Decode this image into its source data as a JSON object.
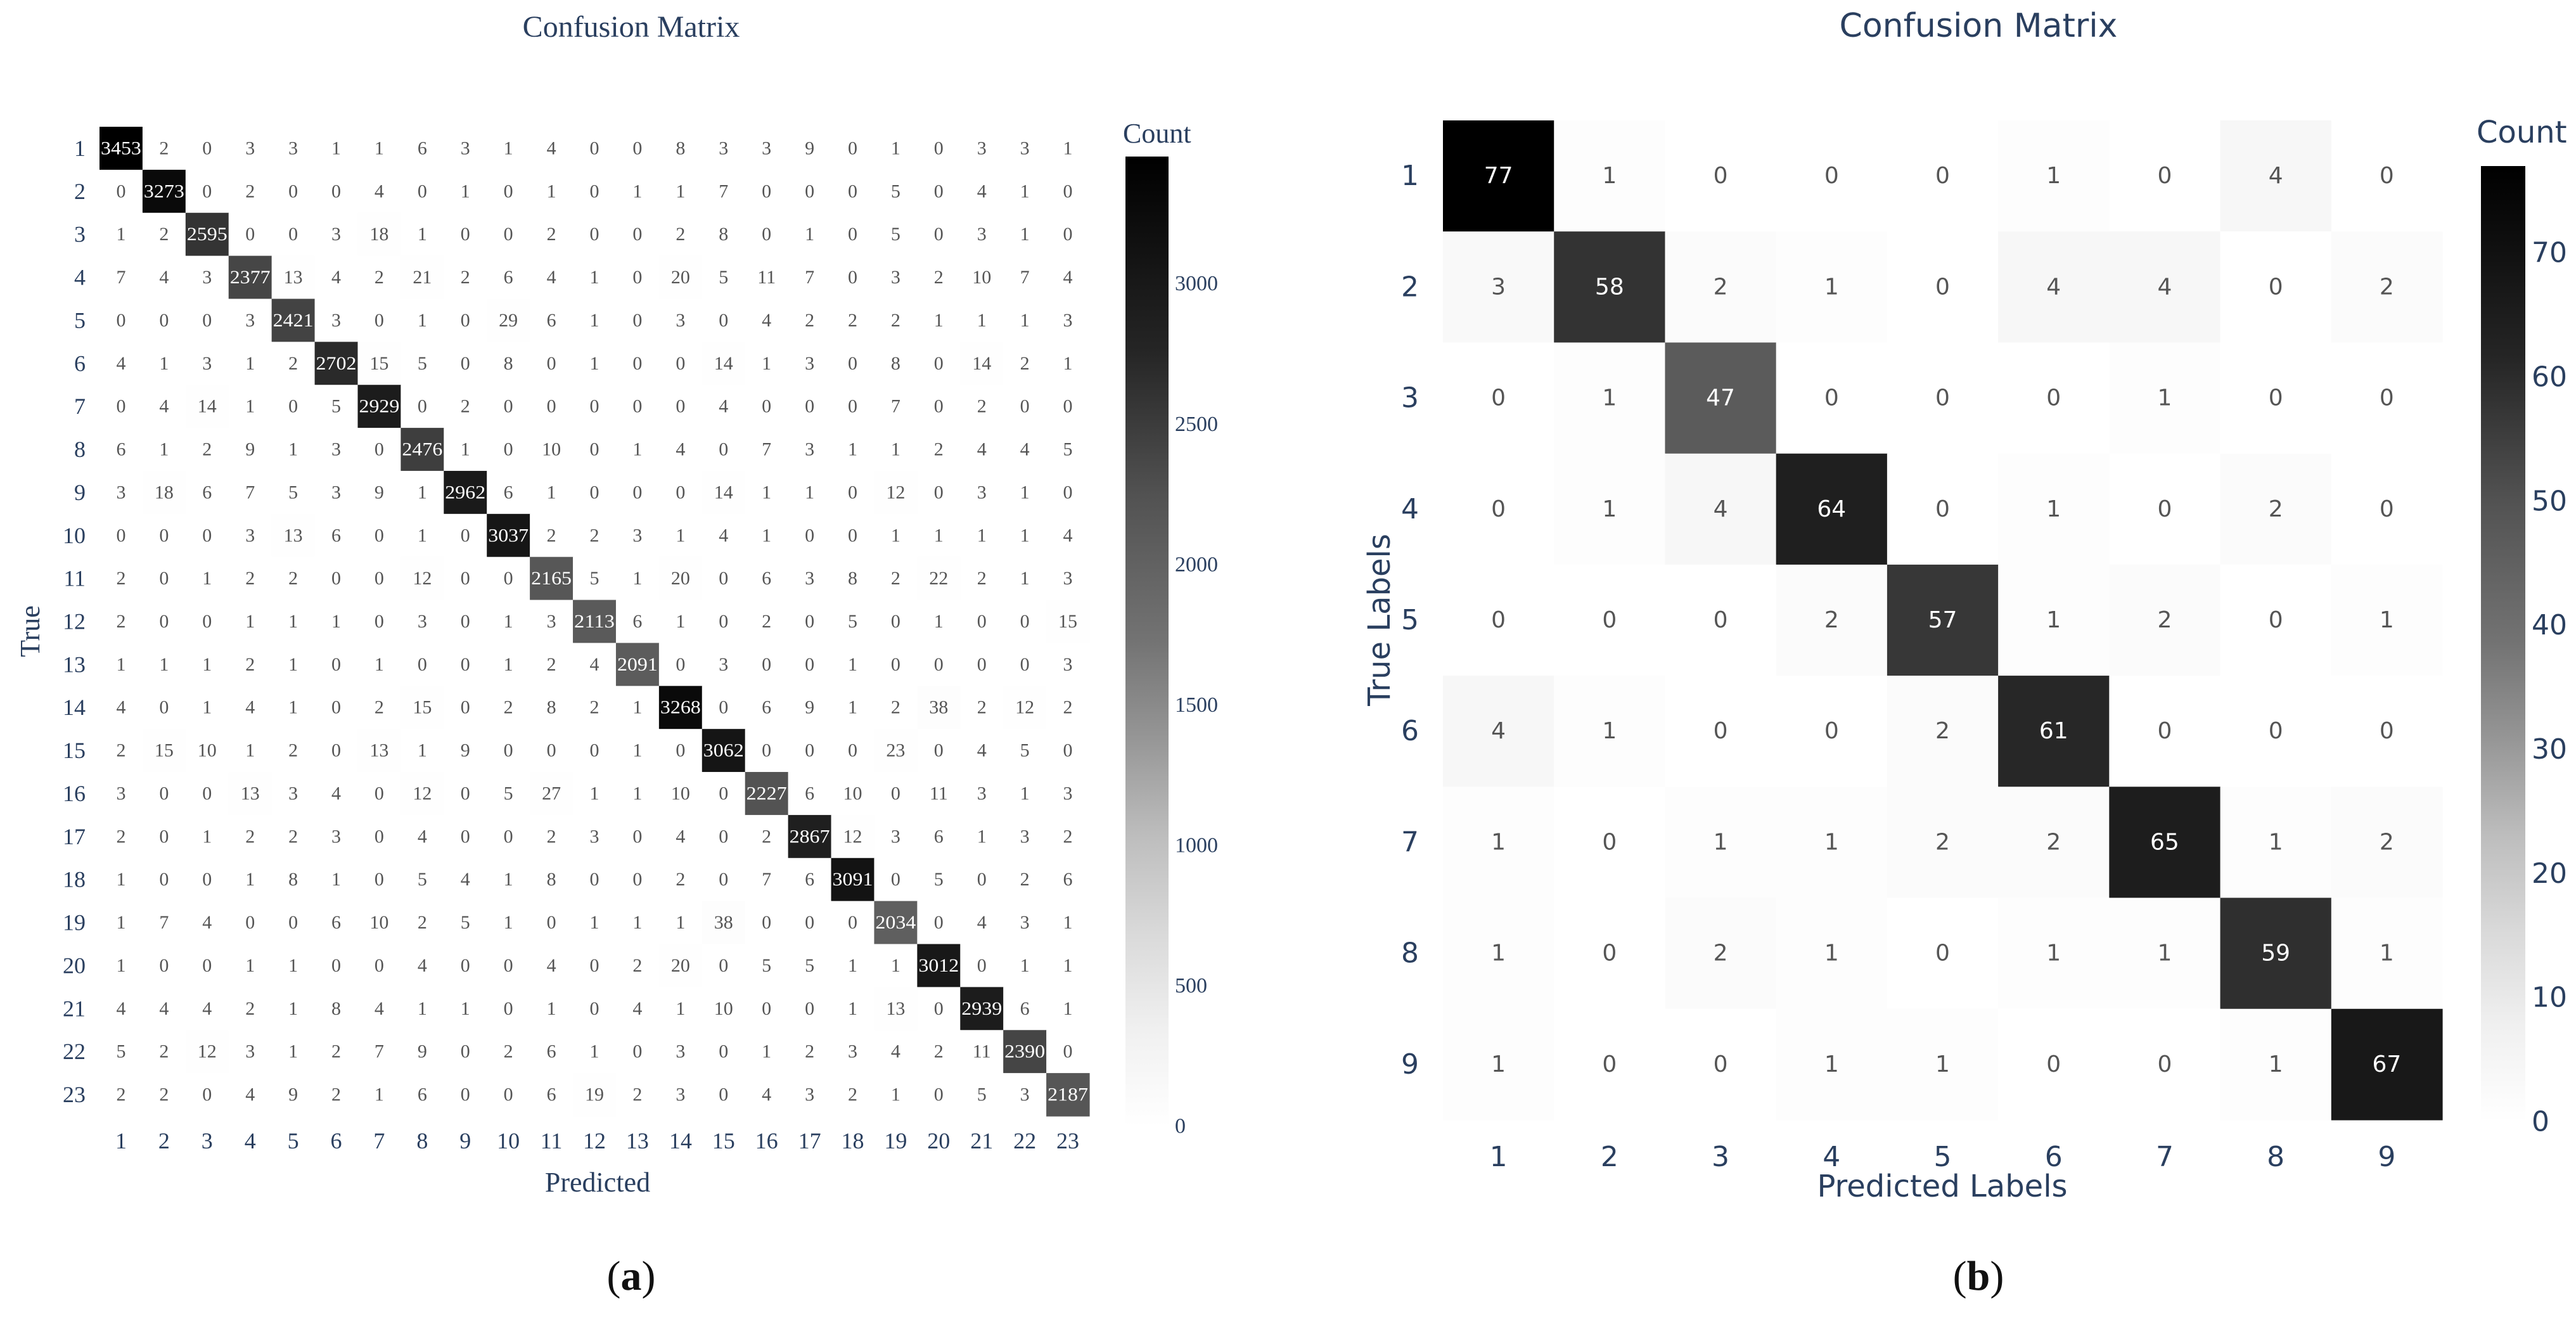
{
  "panels": [
    {
      "id": "a",
      "title": "Confusion Matrix",
      "xlabel": "Predicted",
      "ylabel": "True",
      "colorbar_title": "Count",
      "colorbar_ticks": [
        0,
        500,
        1000,
        1500,
        2000,
        2500,
        3000
      ],
      "caption_letter": "a"
    },
    {
      "id": "b",
      "title": "Confusion Matrix",
      "xlabel": "Predicted Labels",
      "ylabel": "True Labels",
      "colorbar_title": "Count",
      "colorbar_ticks": [
        0,
        10,
        20,
        30,
        40,
        50,
        60,
        70
      ],
      "caption_letter": "b"
    }
  ],
  "colors": {
    "text_dark_blue": "#2a3f5f",
    "caption": "#111111",
    "scale_low": "#ffffff",
    "scale_high": "#000000"
  },
  "chart_data": [
    {
      "type": "heatmap",
      "title": "Confusion Matrix",
      "xlabel": "Predicted",
      "ylabel": "True",
      "colorscale": "white-to-black",
      "zmin": 0,
      "zmax": 3453,
      "x_labels": [
        "1",
        "2",
        "3",
        "4",
        "5",
        "6",
        "7",
        "8",
        "9",
        "10",
        "11",
        "12",
        "13",
        "14",
        "15",
        "16",
        "17",
        "18",
        "19",
        "20",
        "21",
        "22",
        "23"
      ],
      "y_labels": [
        "1",
        "2",
        "3",
        "4",
        "5",
        "6",
        "7",
        "8",
        "9",
        "10",
        "11",
        "12",
        "13",
        "14",
        "15",
        "16",
        "17",
        "18",
        "19",
        "20",
        "21",
        "22",
        "23"
      ],
      "z": [
        [
          3453,
          2,
          0,
          3,
          3,
          1,
          1,
          6,
          3,
          1,
          4,
          0,
          0,
          8,
          3,
          3,
          9,
          0,
          1,
          0,
          3,
          3,
          1
        ],
        [
          0,
          3273,
          0,
          2,
          0,
          0,
          4,
          0,
          1,
          0,
          1,
          0,
          1,
          1,
          7,
          0,
          0,
          0,
          5,
          0,
          4,
          1,
          0
        ],
        [
          1,
          2,
          2595,
          0,
          0,
          3,
          18,
          1,
          0,
          0,
          2,
          0,
          0,
          2,
          8,
          0,
          1,
          0,
          5,
          0,
          3,
          1,
          0
        ],
        [
          7,
          4,
          3,
          2377,
          13,
          4,
          2,
          21,
          2,
          6,
          4,
          1,
          0,
          20,
          5,
          11,
          7,
          0,
          3,
          2,
          10,
          7,
          4
        ],
        [
          0,
          0,
          0,
          3,
          2421,
          3,
          0,
          1,
          0,
          29,
          6,
          1,
          0,
          3,
          0,
          4,
          2,
          2,
          2,
          1,
          1,
          1,
          3
        ],
        [
          4,
          1,
          3,
          1,
          2,
          2702,
          15,
          5,
          0,
          8,
          0,
          1,
          0,
          0,
          14,
          1,
          3,
          0,
          8,
          0,
          14,
          2,
          1
        ],
        [
          0,
          4,
          14,
          1,
          0,
          5,
          2929,
          0,
          2,
          0,
          0,
          0,
          0,
          0,
          4,
          0,
          0,
          0,
          7,
          0,
          2,
          0,
          0
        ],
        [
          6,
          1,
          2,
          9,
          1,
          3,
          0,
          2476,
          1,
          0,
          10,
          0,
          1,
          4,
          0,
          7,
          3,
          1,
          1,
          2,
          4,
          4,
          5
        ],
        [
          3,
          18,
          6,
          7,
          5,
          3,
          9,
          1,
          2962,
          6,
          1,
          0,
          0,
          0,
          14,
          1,
          1,
          0,
          12,
          0,
          3,
          1,
          0
        ],
        [
          0,
          0,
          0,
          3,
          13,
          6,
          0,
          1,
          0,
          3037,
          2,
          2,
          3,
          1,
          4,
          1,
          0,
          0,
          1,
          1,
          1,
          1,
          4
        ],
        [
          2,
          0,
          1,
          2,
          2,
          0,
          0,
          12,
          0,
          0,
          2165,
          5,
          1,
          20,
          0,
          6,
          3,
          8,
          2,
          22,
          2,
          1,
          3
        ],
        [
          2,
          0,
          0,
          1,
          1,
          1,
          0,
          3,
          0,
          1,
          3,
          2113,
          6,
          1,
          0,
          2,
          0,
          5,
          0,
          1,
          0,
          0,
          15
        ],
        [
          1,
          1,
          1,
          2,
          1,
          0,
          1,
          0,
          0,
          1,
          2,
          4,
          2091,
          0,
          3,
          0,
          0,
          1,
          0,
          0,
          0,
          0,
          3
        ],
        [
          4,
          0,
          1,
          4,
          1,
          0,
          2,
          15,
          0,
          2,
          8,
          2,
          1,
          3268,
          0,
          6,
          9,
          1,
          2,
          38,
          2,
          12,
          2
        ],
        [
          2,
          15,
          10,
          1,
          2,
          0,
          13,
          1,
          9,
          0,
          0,
          0,
          1,
          0,
          3062,
          0,
          0,
          0,
          23,
          0,
          4,
          5,
          0
        ],
        [
          3,
          0,
          0,
          13,
          3,
          4,
          0,
          12,
          0,
          5,
          27,
          1,
          1,
          10,
          0,
          2227,
          6,
          10,
          0,
          11,
          3,
          1,
          3
        ],
        [
          2,
          0,
          1,
          2,
          2,
          3,
          0,
          4,
          0,
          0,
          2,
          3,
          0,
          4,
          0,
          2,
          2867,
          12,
          3,
          6,
          1,
          3,
          2
        ],
        [
          1,
          0,
          0,
          1,
          8,
          1,
          0,
          5,
          4,
          1,
          8,
          0,
          0,
          2,
          0,
          7,
          6,
          3091,
          0,
          5,
          0,
          2,
          6
        ],
        [
          1,
          7,
          4,
          0,
          0,
          6,
          10,
          2,
          5,
          1,
          0,
          1,
          1,
          1,
          38,
          0,
          0,
          0,
          2034,
          0,
          4,
          3,
          1
        ],
        [
          1,
          0,
          0,
          1,
          1,
          0,
          0,
          4,
          0,
          0,
          4,
          0,
          2,
          20,
          0,
          5,
          5,
          1,
          1,
          3012,
          0,
          1,
          1
        ],
        [
          4,
          4,
          4,
          2,
          1,
          8,
          4,
          1,
          1,
          0,
          1,
          0,
          4,
          1,
          10,
          0,
          0,
          1,
          13,
          0,
          2939,
          6,
          1
        ],
        [
          5,
          2,
          12,
          3,
          1,
          2,
          7,
          9,
          0,
          2,
          6,
          1,
          0,
          3,
          0,
          1,
          2,
          3,
          4,
          2,
          11,
          2390,
          0
        ],
        [
          2,
          2,
          0,
          4,
          9,
          2,
          1,
          6,
          0,
          0,
          6,
          19,
          2,
          3,
          0,
          4,
          3,
          2,
          1,
          0,
          5,
          3,
          2187
        ]
      ]
    },
    {
      "type": "heatmap",
      "title": "Confusion Matrix",
      "xlabel": "Predicted Labels",
      "ylabel": "True Labels",
      "colorscale": "white-to-black",
      "zmin": 0,
      "zmax": 77,
      "x_labels": [
        "1",
        "2",
        "3",
        "4",
        "5",
        "6",
        "7",
        "8",
        "9"
      ],
      "y_labels": [
        "1",
        "2",
        "3",
        "4",
        "5",
        "6",
        "7",
        "8",
        "9"
      ],
      "z": [
        [
          77,
          1,
          0,
          0,
          0,
          1,
          0,
          4,
          0
        ],
        [
          3,
          58,
          2,
          1,
          0,
          4,
          4,
          0,
          2
        ],
        [
          0,
          1,
          47,
          0,
          0,
          0,
          1,
          0,
          0
        ],
        [
          0,
          1,
          4,
          64,
          0,
          1,
          0,
          2,
          0
        ],
        [
          0,
          0,
          0,
          2,
          57,
          1,
          2,
          0,
          1
        ],
        [
          4,
          1,
          0,
          0,
          2,
          61,
          0,
          0,
          0
        ],
        [
          1,
          0,
          1,
          1,
          2,
          2,
          65,
          1,
          2
        ],
        [
          1,
          0,
          2,
          1,
          0,
          1,
          1,
          59,
          1
        ],
        [
          1,
          0,
          0,
          1,
          1,
          0,
          0,
          1,
          67
        ]
      ]
    }
  ]
}
